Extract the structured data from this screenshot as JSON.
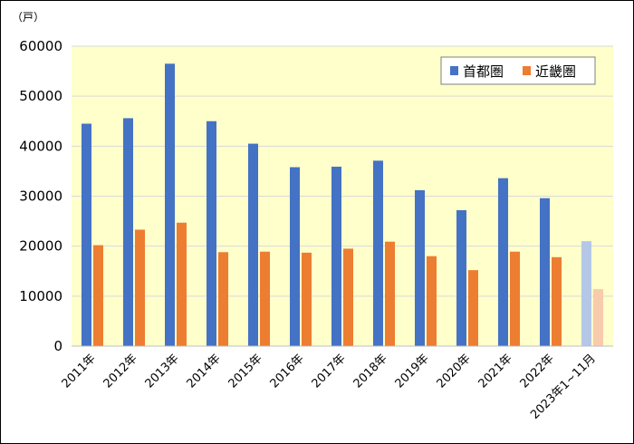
{
  "chart_data": {
    "type": "bar",
    "unit_label": "（戸）",
    "ylim": [
      0,
      60000
    ],
    "yticks": [
      0,
      10000,
      20000,
      30000,
      40000,
      50000,
      60000
    ],
    "grid": true,
    "legend_position": "top-right",
    "categories": [
      "2011年",
      "2012年",
      "2013年",
      "2014年",
      "2015年",
      "2016年",
      "2017年",
      "2018年",
      "2019年",
      "2020年",
      "2021年",
      "2022年",
      "2023年1~11月"
    ],
    "series": [
      {
        "name": "首都圏",
        "color": "#4472c4",
        "faded_color": "#b4c7e7",
        "values": [
          44500,
          45600,
          56500,
          45000,
          40500,
          35800,
          35900,
          37100,
          31200,
          27200,
          33600,
          29600,
          21000
        ]
      },
      {
        "name": "近畿圏",
        "color": "#ed7d31",
        "faded_color": "#f8cbad",
        "values": [
          20200,
          23300,
          24700,
          18800,
          18900,
          18700,
          19500,
          20900,
          18000,
          15200,
          18900,
          17800,
          11400
        ]
      }
    ],
    "faded_categories": [
      "2023年1~11月"
    ],
    "plot_background": "#ffffcc",
    "grid_color": "#d9d9d9"
  }
}
